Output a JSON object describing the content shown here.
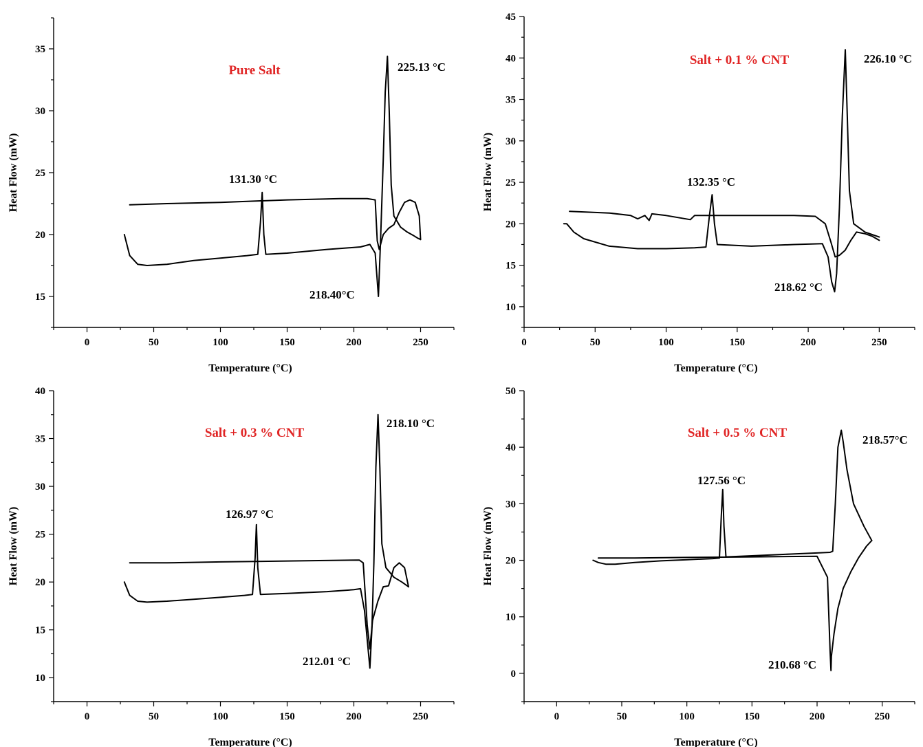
{
  "colors": {
    "title": "#e02424",
    "curve": "#000000",
    "axis": "#000000"
  },
  "chart_data": [
    {
      "type": "line",
      "title": "Pure Salt",
      "xlabel": "Temperature (°C)",
      "ylabel": "Heat Flow (mW)",
      "xlim": [
        -25,
        275
      ],
      "ylim": [
        12.5,
        37.5
      ],
      "xticks": [
        0,
        50,
        100,
        150,
        200,
        250
      ],
      "yticks": [
        15,
        20,
        25,
        30,
        35
      ],
      "annotations": [
        {
          "text": "131.30 °C",
          "x": 131.3,
          "y": 23.4
        },
        {
          "text": "225.13 °C",
          "x": 225.13,
          "y": 34.4
        },
        {
          "text": "218.40°C",
          "x": 218.4,
          "y": 15.0
        }
      ],
      "series": [
        {
          "x": [
            28,
            32,
            38,
            45,
            60,
            80,
            100,
            120,
            128,
            130,
            131.3,
            132.5,
            134,
            150,
            180,
            205,
            212,
            216,
            218.4,
            220,
            222,
            223.5,
            225.13,
            226.5,
            228,
            230,
            235,
            240,
            245,
            248,
            250
          ],
          "y": [
            20.0,
            18.3,
            17.6,
            17.5,
            17.6,
            17.9,
            18.1,
            18.3,
            18.4,
            21.0,
            23.4,
            20.0,
            18.4,
            18.5,
            18.8,
            19.0,
            19.2,
            18.5,
            15.0,
            19.5,
            26.0,
            31.5,
            34.4,
            30.0,
            24.0,
            21.5,
            20.6,
            20.2,
            19.9,
            19.7,
            19.6
          ]
        },
        {
          "x": [
            250,
            249,
            246,
            242,
            238,
            234,
            230,
            226,
            222,
            219,
            217.5,
            216,
            210,
            190,
            150,
            100,
            60,
            32
          ],
          "y": [
            19.6,
            21.5,
            22.6,
            22.8,
            22.6,
            21.8,
            20.8,
            20.5,
            20.0,
            18.8,
            19.5,
            22.8,
            22.9,
            22.9,
            22.8,
            22.6,
            22.5,
            22.4
          ]
        }
      ]
    },
    {
      "type": "line",
      "title": "Salt + 0.1 % CNT",
      "xlabel": "Temperature (°C)",
      "ylabel": "Heat Flow (mW)",
      "xlim": [
        0,
        275
      ],
      "ylim": [
        7.5,
        45
      ],
      "xticks": [
        0,
        50,
        100,
        150,
        200,
        250
      ],
      "yticks": [
        10,
        15,
        20,
        25,
        30,
        35,
        40,
        45
      ],
      "annotations": [
        {
          "text": "132.35 °C",
          "x": 132.35,
          "y": 23.5
        },
        {
          "text": "226.10 °C",
          "x": 226.1,
          "y": 41.0
        },
        {
          "text": "218.62 °C",
          "x": 218.62,
          "y": 11.8
        }
      ],
      "series": [
        {
          "x": [
            28,
            30,
            35,
            42,
            60,
            80,
            100,
            120,
            128,
            130.5,
            132.35,
            134,
            136,
            160,
            190,
            210,
            214,
            216.5,
            218.62,
            220,
            222,
            224,
            226.1,
            227.5,
            229,
            232,
            240,
            245,
            250
          ],
          "y": [
            20.0,
            20.0,
            19.0,
            18.2,
            17.3,
            17.0,
            17.0,
            17.1,
            17.2,
            21.0,
            23.5,
            20.0,
            17.5,
            17.3,
            17.5,
            17.6,
            16.0,
            13.0,
            11.8,
            14.0,
            22.0,
            33.0,
            41.0,
            33.0,
            24.0,
            20.0,
            19.0,
            18.7,
            18.4
          ]
        },
        {
          "x": [
            250,
            245,
            240,
            234,
            230,
            226,
            222,
            219,
            216,
            212,
            205,
            190,
            140,
            120,
            117,
            100,
            90,
            88,
            85,
            80,
            75,
            60,
            32
          ],
          "y": [
            18.0,
            18.5,
            18.8,
            19.0,
            18.0,
            16.8,
            16.2,
            16.0,
            17.8,
            20.0,
            20.9,
            21.0,
            21.0,
            21.0,
            20.5,
            21.0,
            21.2,
            20.4,
            21.0,
            20.6,
            21.0,
            21.3,
            21.5
          ]
        }
      ]
    },
    {
      "type": "line",
      "title": "Salt + 0.3 % CNT",
      "xlabel": "Temperature (°C)",
      "ylabel": "Heat Flow (mW)",
      "xlim": [
        -25,
        275
      ],
      "ylim": [
        7.5,
        40
      ],
      "xticks": [
        0,
        50,
        100,
        150,
        200,
        250
      ],
      "yticks": [
        10,
        15,
        20,
        25,
        30,
        35,
        40
      ],
      "annotations": [
        {
          "text": "126.97 °C",
          "x": 126.97,
          "y": 26.0
        },
        {
          "text": "218.10 °C",
          "x": 218.1,
          "y": 37.5
        },
        {
          "text": "212.01 °C",
          "x": 212.01,
          "y": 11.0
        }
      ],
      "series": [
        {
          "x": [
            28,
            32,
            38,
            45,
            60,
            80,
            100,
            118,
            124,
            126,
            126.97,
            128,
            130,
            150,
            180,
            200,
            205,
            208,
            210,
            212.01,
            213.5,
            215,
            216.5,
            218.1,
            219.5,
            221,
            224,
            230,
            236,
            241
          ],
          "y": [
            20.0,
            18.6,
            18.0,
            17.9,
            18.0,
            18.2,
            18.4,
            18.6,
            18.7,
            22.5,
            26.0,
            21.5,
            18.7,
            18.8,
            19.0,
            19.2,
            19.3,
            17.0,
            14.0,
            11.0,
            15.0,
            22.0,
            32.0,
            37.5,
            32.0,
            24.0,
            21.5,
            20.5,
            20.0,
            19.5
          ]
        },
        {
          "x": [
            241,
            238,
            234,
            230,
            226,
            222,
            218,
            214,
            212,
            210,
            207,
            204,
            150,
            100,
            60,
            32
          ],
          "y": [
            19.5,
            21.5,
            22.0,
            21.5,
            19.6,
            19.5,
            18.0,
            16.0,
            13.0,
            15.5,
            22.0,
            22.3,
            22.2,
            22.1,
            22.0,
            22.0
          ]
        }
      ]
    },
    {
      "type": "line",
      "title": "Salt + 0.5 % CNT",
      "xlabel": "Temperature (°C)",
      "ylabel": "Heat Flow (mW)",
      "xlim": [
        -25,
        275
      ],
      "ylim": [
        -5,
        50
      ],
      "xticks": [
        0,
        50,
        100,
        150,
        200,
        250
      ],
      "yticks": [
        0,
        10,
        20,
        30,
        40,
        50
      ],
      "annotations": [
        {
          "text": "127.56 °C",
          "x": 127.56,
          "y": 32.5
        },
        {
          "text": "218.57°C",
          "x": 218.57,
          "y": 43.0
        },
        {
          "text": "210.68 °C",
          "x": 210.68,
          "y": 0.5
        }
      ],
      "series": [
        {
          "x": [
            28,
            32,
            38,
            45,
            60,
            80,
            100,
            120,
            125,
            126.5,
            127.56,
            128.5,
            130,
            150,
            180,
            200,
            210,
            212,
            214,
            216,
            218.57,
            220,
            223,
            228,
            236,
            242
          ],
          "y": [
            20.0,
            19.6,
            19.3,
            19.3,
            19.6,
            19.9,
            20.1,
            20.3,
            20.4,
            28.0,
            32.5,
            26.0,
            20.6,
            20.8,
            21.1,
            21.3,
            21.4,
            21.6,
            30.0,
            40.0,
            43.0,
            41.0,
            36.0,
            30.0,
            26.0,
            23.5
          ]
        },
        {
          "x": [
            242,
            238,
            232,
            226,
            220,
            216,
            213,
            211,
            210.68,
            210,
            208,
            200,
            150,
            100,
            60,
            32
          ],
          "y": [
            23.5,
            22.5,
            20.5,
            18.0,
            15.0,
            11.5,
            7.0,
            3.0,
            0.5,
            4.0,
            17.0,
            20.7,
            20.6,
            20.5,
            20.4,
            20.4
          ]
        }
      ]
    }
  ]
}
